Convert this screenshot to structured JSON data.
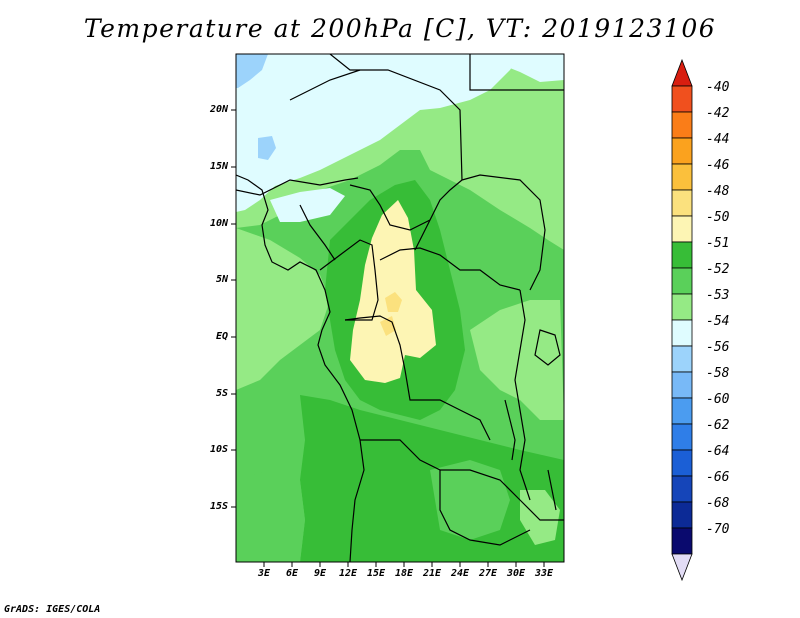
{
  "title": "Temperature at 200hPa [C], VT: 2019123106",
  "credit": "GrADS: IGES/COLA",
  "map": {
    "latitude_labels": [
      "20N",
      "15N",
      "10N",
      "5N",
      "EQ",
      "5S",
      "10S",
      "15S"
    ],
    "longitude_labels": [
      "3E",
      "6E",
      "9E",
      "12E",
      "15E",
      "18E",
      "21E",
      "24E",
      "27E",
      "30E",
      "33E"
    ]
  },
  "colorbar": {
    "labels": [
      "-40",
      "-42",
      "-44",
      "-46",
      "-48",
      "-50",
      "-51",
      "-52",
      "-53",
      "-54",
      "-56",
      "-58",
      "-60",
      "-62",
      "-64",
      "-66",
      "-68",
      "-70"
    ],
    "colors": [
      "#d81e10",
      "#f0501e",
      "#fa7d18",
      "#fba21e",
      "#fbc03c",
      "#fbe17e",
      "#fdf5b4",
      "#37bd37",
      "#5ad05a",
      "#95ea85",
      "#dffcff",
      "#9cd3fb",
      "#78b9f7",
      "#4b9cf0",
      "#2f7ee8",
      "#1b5fd6",
      "#1545b9",
      "#0c2a96",
      "#0a0a6e",
      "#e2dcf5"
    ]
  }
}
